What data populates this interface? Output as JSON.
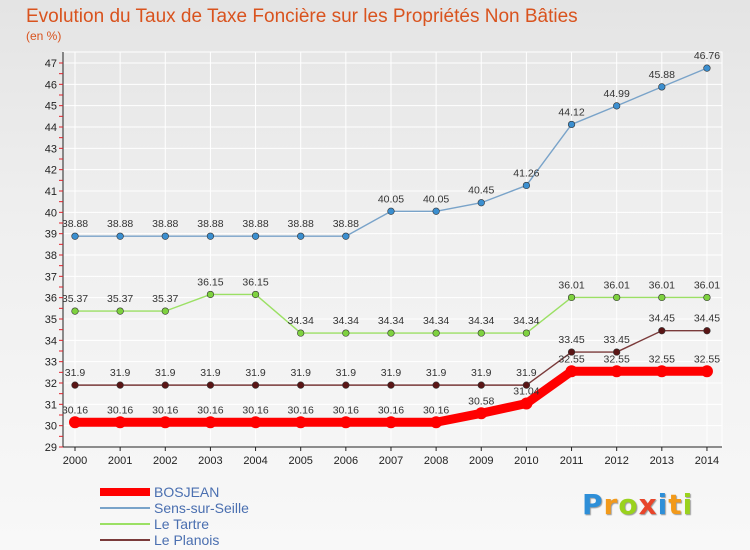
{
  "chart_data": {
    "type": "line",
    "title": "Evolution du Taux de Taxe Foncière sur les Propriétés Non Bâties",
    "subtitle": "(en %)",
    "categories": [
      "2000",
      "2001",
      "2002",
      "2003",
      "2004",
      "2005",
      "2006",
      "2007",
      "2008",
      "2009",
      "2010",
      "2011",
      "2012",
      "2013",
      "2014"
    ],
    "yticks": [
      "29",
      "30",
      "31",
      "32",
      "33",
      "34",
      "35",
      "36",
      "37",
      "38",
      "39",
      "40",
      "41",
      "42",
      "43",
      "44",
      "45",
      "46",
      "47"
    ],
    "ylim": [
      29,
      47
    ],
    "series": [
      {
        "name": "BOSJEAN",
        "color": "#ff0000",
        "values": [
          30.16,
          30.16,
          30.16,
          30.16,
          30.16,
          30.16,
          30.16,
          30.16,
          30.16,
          30.58,
          31.04,
          32.55,
          32.55,
          32.55,
          32.55
        ],
        "labels": [
          "30.16",
          "30.16",
          "30.16",
          "30.16",
          "30.16",
          "30.16",
          "30.16",
          "30.16",
          "30.16",
          "30.58",
          "31.04",
          "32.55",
          "32.55",
          "32.55",
          "32.55"
        ]
      },
      {
        "name": "Sens-sur-Seille",
        "color": "#79a3c9",
        "marker": "#3b8fd0",
        "values": [
          38.88,
          38.88,
          38.88,
          38.88,
          38.88,
          38.88,
          38.88,
          40.05,
          40.05,
          40.45,
          41.26,
          44.12,
          44.99,
          45.88,
          46.76
        ],
        "labels": [
          "38.88",
          "38.88",
          "38.88",
          "38.88",
          "38.88",
          "38.88",
          "38.88",
          "40.05",
          "40.05",
          "40.45",
          "41.26",
          "44.12",
          "44.99",
          "45.88",
          "46.76"
        ]
      },
      {
        "name": "Le Tartre",
        "color": "#9be064",
        "marker": "#7ed23f",
        "values": [
          35.37,
          35.37,
          35.37,
          36.15,
          36.15,
          34.34,
          34.34,
          34.34,
          34.34,
          34.34,
          34.34,
          36.01,
          36.01,
          36.01,
          36.01
        ],
        "labels": [
          "35.37",
          "35.37",
          "35.37",
          "36.15",
          "36.15",
          "34.34",
          "34.34",
          "34.34",
          "34.34",
          "34.34",
          "34.34",
          "36.01",
          "36.01",
          "36.01",
          "36.01"
        ]
      },
      {
        "name": "Le Planois",
        "color": "#7a3a3a",
        "marker": "#5a1515",
        "values": [
          31.9,
          31.9,
          31.9,
          31.9,
          31.9,
          31.9,
          31.9,
          31.9,
          31.9,
          31.9,
          31.9,
          33.45,
          33.45,
          34.45,
          34.45
        ],
        "labels": [
          "31.9",
          "31.9",
          "31.9",
          "31.9",
          "31.9",
          "31.9",
          "31.9",
          "31.9",
          "31.9",
          "31.9",
          "31.9",
          "33.45",
          "33.45",
          "34.45",
          "34.45"
        ]
      }
    ],
    "legend_position": "bottom-left"
  },
  "logo": {
    "text": "Proxiti",
    "colors": [
      "#2e8fd8",
      "#f29a1b",
      "#9ad21e",
      "#e8452a",
      "#2e8fd8",
      "#f29a1b",
      "#9ad21e"
    ]
  }
}
